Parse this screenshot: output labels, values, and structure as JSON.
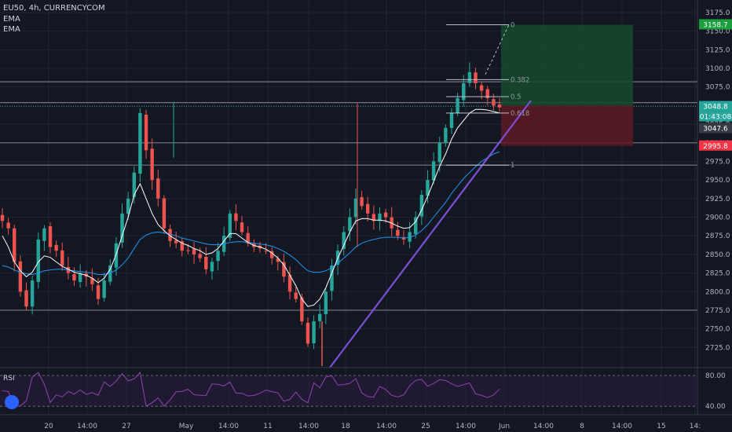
{
  "header": {
    "symbol_line": "EU50, 4h, CURRENCYCOM",
    "indicator_1": "EMA",
    "indicator_2": "EMA"
  },
  "rsi_panel": {
    "label": "RSI",
    "levels": [
      80.0,
      40.0
    ],
    "level_labels": [
      "80.00",
      "40.00"
    ]
  },
  "colors": {
    "background": "#131722",
    "up_candle": "#26a69a",
    "down_candle": "#ef5350",
    "ema_fast": "#ffffff",
    "ema_slow": "#2196f3",
    "trendline": "#7b4fd8",
    "rsi_line": "#8e44ad",
    "profit_zone": "#154a2c",
    "loss_zone": "#5e1a24"
  },
  "chart_data": {
    "type": "candlestick",
    "ylim": [
      2700,
      3180
    ],
    "y_ticks": [
      "3175.0",
      "3150.0",
      "3125.0",
      "3100.0",
      "3075.0",
      "3050.0",
      "3025.0",
      "3000.0",
      "2975.0",
      "2950.0",
      "2925.0",
      "2900.0",
      "2875.0",
      "2850.0",
      "2825.0",
      "2800.0",
      "2775.0",
      "2750.0",
      "2725.0"
    ],
    "x_ticks": [
      "20",
      "14:00",
      "27",
      "May",
      "14:00",
      "11",
      "14:00",
      "18",
      "14:00",
      "25",
      "14:00",
      "Jun",
      "14:00",
      "8",
      "14:00",
      "15",
      "14:"
    ],
    "close_path": [
      2895,
      2885,
      2840,
      2800,
      2780,
      2815,
      2870,
      2885,
      2860,
      2855,
      2835,
      2825,
      2815,
      2825,
      2820,
      2810,
      2790,
      2815,
      2835,
      2865,
      2905,
      2925,
      2960,
      3040,
      2990,
      2950,
      2925,
      2885,
      2868,
      2865,
      2855,
      2855,
      2850,
      2845,
      2830,
      2840,
      2855,
      2875,
      2905,
      2895,
      2880,
      2865,
      2860,
      2858,
      2855,
      2845,
      2840,
      2820,
      2800,
      2790,
      2760,
      2730,
      2760,
      2770,
      2800,
      2835,
      2855,
      2880,
      2900,
      2925,
      2915,
      2905,
      2895,
      2905,
      2900,
      2885,
      2875,
      2870,
      2880,
      2900,
      2930,
      2950,
      2975,
      3000,
      3020,
      3040,
      3060,
      3080,
      3095,
      3080,
      3070,
      3060,
      3050,
      3047.6
    ],
    "ema_fast": [
      2875,
      2860,
      2840,
      2828,
      2820,
      2826,
      2840,
      2848,
      2846,
      2840,
      2834,
      2830,
      2826,
      2824,
      2822,
      2818,
      2812,
      2818,
      2830,
      2850,
      2875,
      2900,
      2930,
      2945,
      2925,
      2905,
      2890,
      2882,
      2875,
      2870,
      2865,
      2862,
      2858,
      2855,
      2850,
      2852,
      2858,
      2868,
      2878,
      2878,
      2872,
      2866,
      2862,
      2860,
      2857,
      2852,
      2845,
      2836,
      2822,
      2808,
      2790,
      2780,
      2782,
      2790,
      2805,
      2825,
      2845,
      2862,
      2880,
      2895,
      2898,
      2898,
      2896,
      2896,
      2895,
      2892,
      2888,
      2885,
      2886,
      2894,
      2910,
      2928,
      2948,
      2968,
      2985,
      3005,
      3020,
      3030,
      3040,
      3045,
      3045,
      3044,
      3042,
      3040
    ],
    "ema_slow": [
      2835,
      2833,
      2829,
      2826,
      2824,
      2823,
      2825,
      2828,
      2829,
      2830,
      2830,
      2829,
      2828,
      2827,
      2826,
      2825,
      2823,
      2823,
      2825,
      2829,
      2836,
      2845,
      2858,
      2870,
      2876,
      2879,
      2880,
      2879,
      2877,
      2875,
      2872,
      2870,
      2868,
      2866,
      2864,
      2863,
      2863,
      2864,
      2866,
      2867,
      2867,
      2866,
      2865,
      2864,
      2863,
      2861,
      2858,
      2854,
      2849,
      2843,
      2835,
      2828,
      2826,
      2826,
      2828,
      2832,
      2838,
      2845,
      2852,
      2860,
      2865,
      2868,
      2870,
      2872,
      2873,
      2873,
      2873,
      2872,
      2873,
      2876,
      2882,
      2890,
      2900,
      2910,
      2920,
      2932,
      2942,
      2952,
      2960,
      2968,
      2975,
      2980,
      2985,
      2988
    ],
    "horizontal_levels": [
      3082,
      3054,
      3000,
      2970,
      2775
    ],
    "last_price": "3048.8",
    "countdown": "01:43:08",
    "prev_price": "3047.6",
    "target_price": "3158.7",
    "stop_price": "2995.8",
    "fib_labels": [
      "0",
      "0.382",
      "0.5",
      "0.618",
      "1"
    ],
    "fib_prices": [
      3158.7,
      3085,
      3062,
      3040,
      2970
    ],
    "trendline": {
      "from": [
        2700,
        "May 14 ~18:00"
      ],
      "to": [
        3068,
        "Jun 2"
      ]
    },
    "position": {
      "entry": 3050,
      "target": 3158.7,
      "stop": 2995.8
    }
  }
}
